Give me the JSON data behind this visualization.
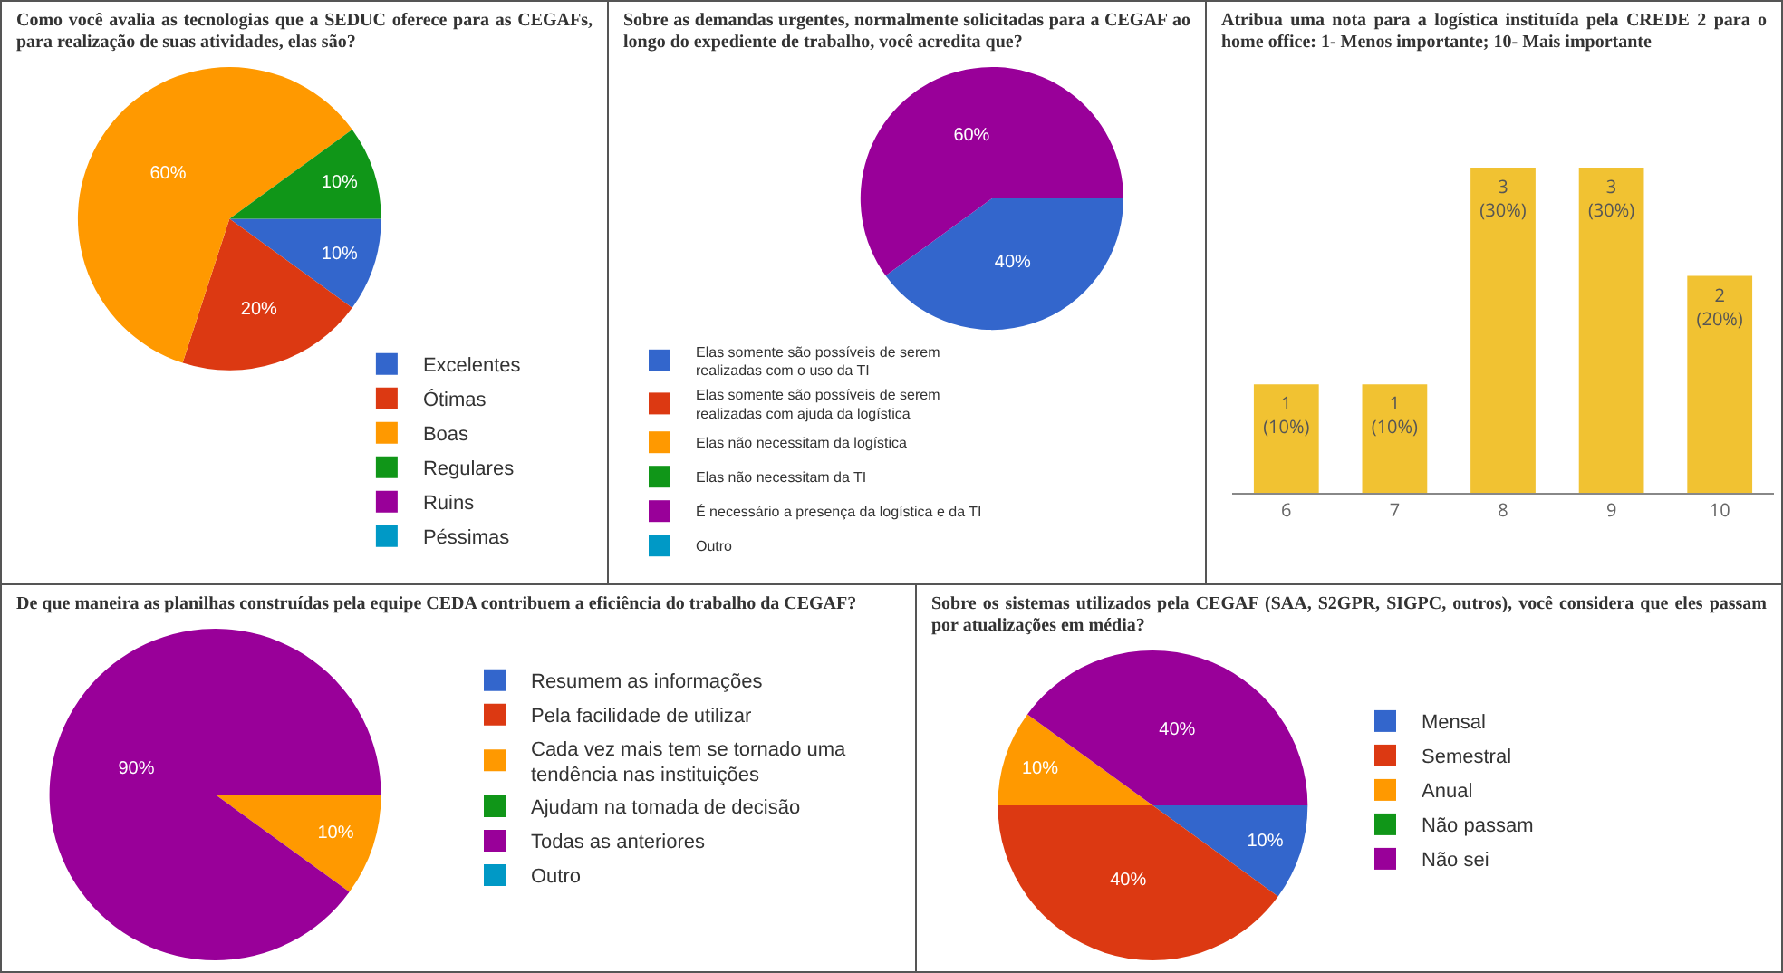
{
  "chart_data": [
    {
      "type": "pie",
      "title": "Como você avalia as tecnologias que a SEDUC oferece para as CEGAFs, para realização de suas atividades, elas são?",
      "categories": [
        "Excelentes",
        "Ótimas",
        "Boas",
        "Regulares",
        "Ruins",
        "Péssimas"
      ],
      "values": [
        10,
        20,
        60,
        10,
        0,
        0
      ],
      "value_labels": [
        "10%",
        "20%",
        "60%",
        "10%",
        null,
        null
      ],
      "colors": [
        "#3366cc",
        "#dc3912",
        "#ff9900",
        "#109618",
        "#990099",
        "#0099c6"
      ],
      "legend": "bottom right"
    },
    {
      "type": "pie",
      "title": "Sobre as demandas urgentes, normalmente solicitadas para a CEGAF ao longo do expediente de trabalho, você acredita que?",
      "categories": [
        "Elas somente são possíveis de serem realizadas com o uso da TI",
        "Elas somente são possíveis de serem realizadas com ajuda da logística",
        "Elas não necessitam da logística",
        "Elas não necessitam da TI",
        "É necessário a presença da logística e da TI",
        "Outro"
      ],
      "values": [
        40,
        0,
        0,
        0,
        60,
        0
      ],
      "value_labels": [
        "40%",
        null,
        null,
        null,
        "60%",
        null
      ],
      "colors": [
        "#3366cc",
        "#dc3912",
        "#ff9900",
        "#109618",
        "#990099",
        "#0099c6"
      ],
      "legend": "bottom left"
    },
    {
      "type": "bar",
      "title": "Atribua uma nota para a logística instituída pela CREDE 2 para o home office: 1- Menos importante; 10- Mais importante",
      "categories": [
        "6",
        "7",
        "8",
        "9",
        "10"
      ],
      "values": [
        1,
        1,
        3,
        3,
        2
      ],
      "value_labels": [
        "1\n(10%)",
        "1\n(10%)",
        "3\n(30%)",
        "3\n(30%)",
        "2\n(20%)"
      ],
      "color": "#f1c232",
      "tick_labels": "x"
    },
    {
      "type": "pie",
      "title": "De que maneira as planilhas construídas pela equipe CEDA contribuem a eficiência do trabalho da CEGAF?",
      "categories": [
        "Resumem as informações",
        "Pela facilidade de utilizar",
        "Cada vez mais tem se tornado uma tendência nas instituições",
        "Ajudam na tomada de decisão",
        "Todas as anteriores",
        "Outro"
      ],
      "values": [
        0,
        0,
        10,
        0,
        90,
        0
      ],
      "value_labels": [
        null,
        null,
        "10%",
        null,
        "90%",
        null
      ],
      "colors": [
        "#3366cc",
        "#dc3912",
        "#ff9900",
        "#109618",
        "#990099",
        "#0099c6"
      ],
      "legend": "right"
    },
    {
      "type": "pie",
      "title": "Sobre os sistemas utilizados pela CEGAF (SAA, S2GPR, SIGPC, outros), você considera que eles passam por atualizações em média?",
      "categories": [
        "Mensal",
        "Semestral",
        "Anual",
        "Não passam",
        "Não sei"
      ],
      "values": [
        10,
        40,
        10,
        0,
        40
      ],
      "value_labels": [
        "10%",
        "40%",
        "10%",
        null,
        "40%"
      ],
      "colors": [
        "#3366cc",
        "#dc3912",
        "#ff9900",
        "#109618",
        "#990099"
      ],
      "legend": "right"
    }
  ]
}
